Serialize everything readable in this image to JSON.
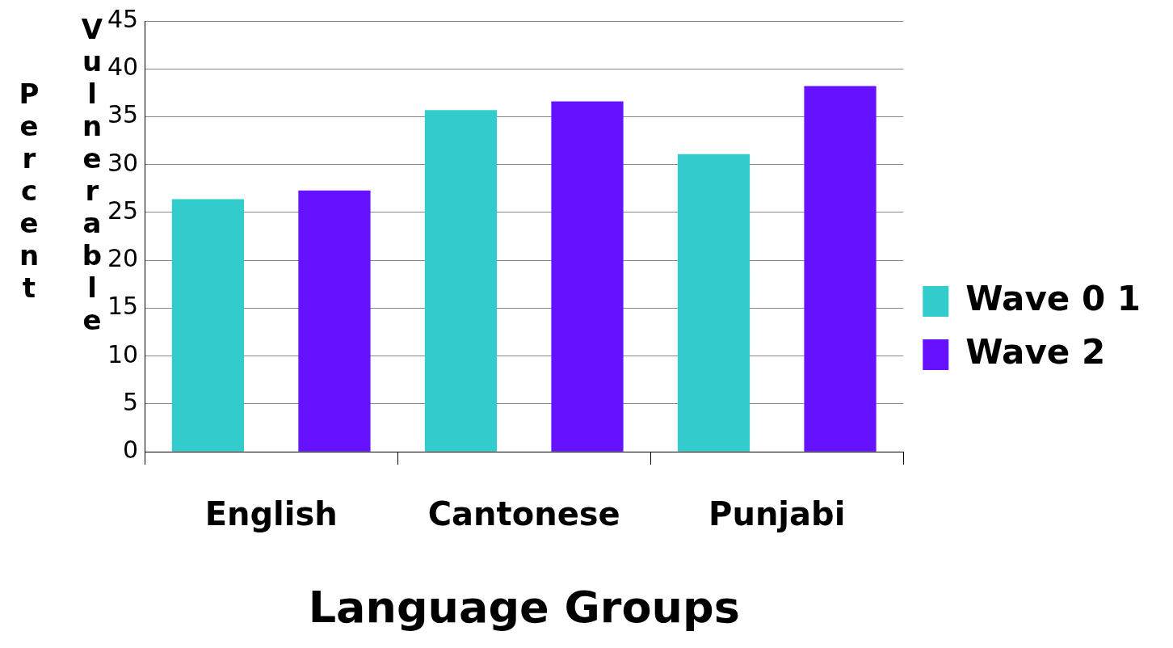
{
  "chart_data": {
    "type": "bar",
    "xlabel": "Language Groups",
    "ylabel": "Percent Vulnerable",
    "categories": [
      "English",
      "Cantonese",
      "Punjabi"
    ],
    "series": [
      {
        "name": "Wave 0 1",
        "color": "#33cccc",
        "values": [
          26.4,
          35.7,
          31.1
        ]
      },
      {
        "name": "Wave 2",
        "color": "#6611ff",
        "values": [
          27.3,
          36.6,
          38.2
        ]
      }
    ],
    "ylim": [
      0,
      45
    ],
    "yticks": [
      0,
      5,
      10,
      15,
      20,
      25,
      30,
      35,
      40,
      45
    ],
    "grid": "y",
    "legend": "right"
  }
}
